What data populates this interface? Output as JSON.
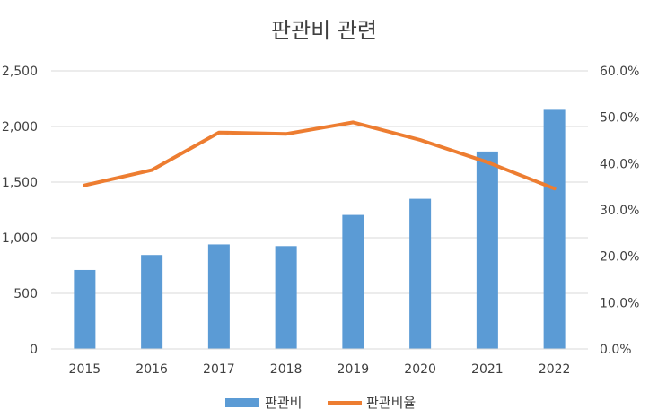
{
  "chart_data": {
    "type": "bar+line",
    "title": "판관비 관련",
    "categories": [
      "2015",
      "2016",
      "2017",
      "2018",
      "2019",
      "2020",
      "2021",
      "2022"
    ],
    "series": [
      {
        "name": "판관비",
        "type": "bar",
        "axis": "left",
        "color": "#5B9BD5",
        "values": [
          710,
          845,
          940,
          925,
          1205,
          1350,
          1775,
          2150
        ]
      },
      {
        "name": "판관비율",
        "type": "line",
        "axis": "right",
        "color": "#ED7D31",
        "values": [
          35.3,
          38.6,
          46.7,
          46.4,
          48.9,
          45.1,
          40.3,
          34.6
        ]
      }
    ],
    "y_left": {
      "min": 0,
      "max": 2500,
      "step": 500,
      "tick_labels": [
        "0",
        "500",
        "1,000",
        "1,500",
        "2,000",
        "2,500"
      ]
    },
    "y_right": {
      "min": 0,
      "max": 60,
      "step": 10,
      "tick_labels": [
        "0.0%",
        "10.0%",
        "20.0%",
        "30.0%",
        "40.0%",
        "50.0%",
        "60.0%"
      ]
    },
    "grid": true,
    "legend_position": "bottom"
  }
}
